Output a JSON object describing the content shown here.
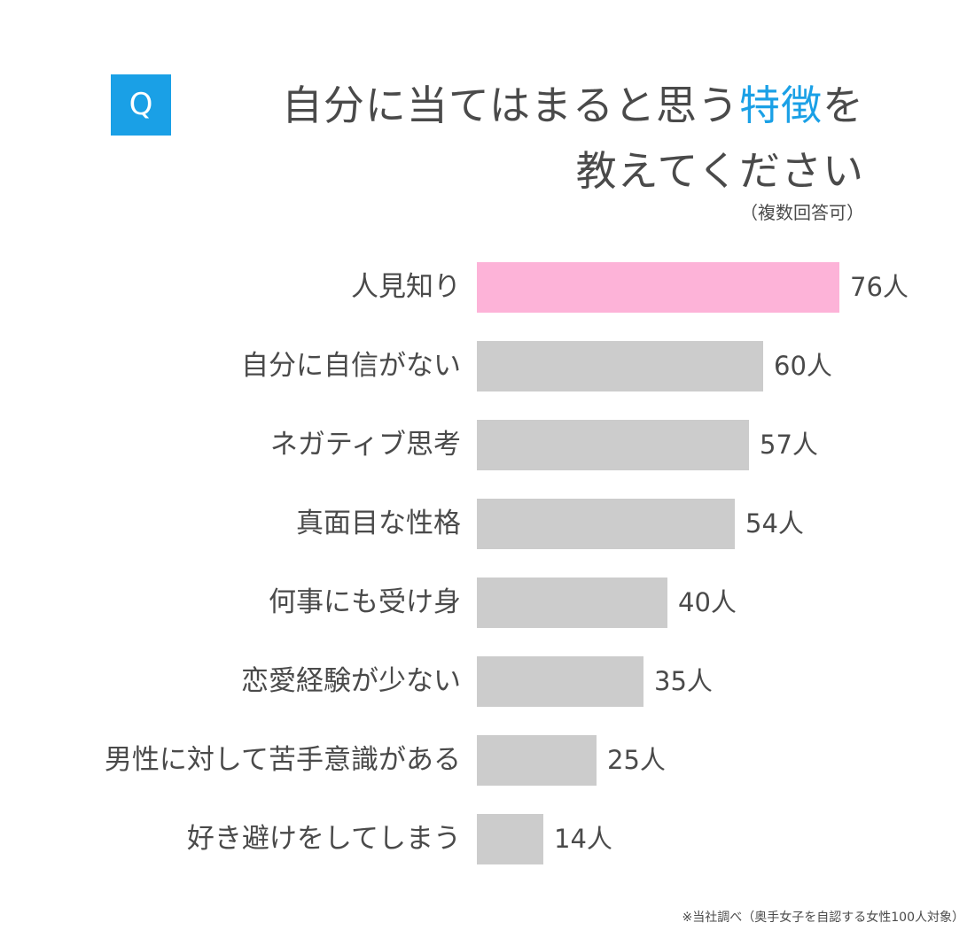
{
  "header": {
    "q_badge": "Q",
    "title_line1_main": "自分に当てはまると思う",
    "title_line1_accent": "特徴",
    "title_line1_end": "を",
    "title_line2": "教えてください",
    "note": "（複数回答可）"
  },
  "colors": {
    "accent": "#1aa0e6",
    "highlight_bar": "#fdb3d8",
    "default_bar": "#cccccc",
    "text": "#4a4a4a"
  },
  "chart_data": {
    "type": "bar",
    "orientation": "horizontal",
    "categories": [
      "人見知り",
      "自分に自信がない",
      "ネガティブ思考",
      "真面目な性格",
      "何事にも受け身",
      "恋愛経験が少ない",
      "男性に対して苦手意識がある",
      "好き避けをしてしまう"
    ],
    "values": [
      76,
      60,
      57,
      54,
      40,
      35,
      25,
      14
    ],
    "value_labels": [
      "76人",
      "60人",
      "57人",
      "54人",
      "40人",
      "35人",
      "25人",
      "14人"
    ],
    "highlight_index": 0,
    "xlim": [
      0,
      76
    ],
    "grid": false,
    "legend": "none"
  },
  "footnote": "※当社調べ（奥手女子を自認する女性100人対象）"
}
